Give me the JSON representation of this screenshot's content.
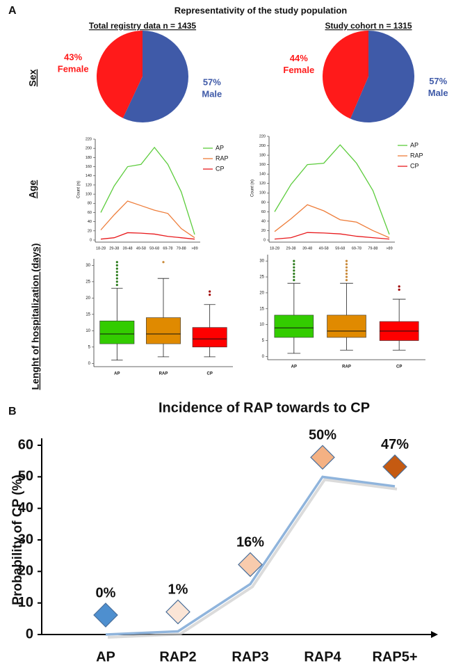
{
  "figure": {
    "panel_a": "A",
    "title": "Representativity of the study population",
    "row_labels": [
      "Sex",
      "Age",
      "Lenght of hospitalization (days)"
    ],
    "panel_b": "B"
  },
  "chart_data": [
    {
      "type": "pie",
      "subtitle": "Total registry data n = 1435",
      "categories": [
        "Female",
        "Male"
      ],
      "values": [
        43,
        57
      ],
      "value_labels": [
        "43%",
        "57%"
      ],
      "colors": [
        "#ff1a1a",
        "#3f5aa8"
      ]
    },
    {
      "type": "pie",
      "subtitle": "Study cohort n = 1315",
      "categories": [
        "Female",
        "Male"
      ],
      "values": [
        44,
        57
      ],
      "value_labels": [
        "44%",
        "57%"
      ],
      "colors": [
        "#ff1a1a",
        "#3f5aa8"
      ]
    },
    {
      "type": "line",
      "ylabel": "Count (n)",
      "categories": [
        "18-28",
        "29-38",
        "39-48",
        "49-58",
        "59-68",
        "69-78",
        "79-88",
        ">89"
      ],
      "ylim": [
        0,
        220
      ],
      "yticks": [
        0,
        20,
        40,
        60,
        80,
        100,
        120,
        140,
        160,
        180,
        200,
        220
      ],
      "series": [
        {
          "name": "AP",
          "color": "#5ccc3c",
          "values": [
            60,
            118,
            160,
            165,
            202,
            165,
            105,
            12
          ]
        },
        {
          "name": "RAP",
          "color": "#ee7d3a",
          "values": [
            22,
            55,
            85,
            75,
            65,
            58,
            25,
            5
          ]
        },
        {
          "name": "CP",
          "color": "#e8191c",
          "values": [
            2,
            5,
            16,
            15,
            13,
            8,
            5,
            2
          ]
        }
      ]
    },
    {
      "type": "line",
      "ylabel": "Count (n)",
      "categories": [
        "18-28",
        "29-38",
        "39-48",
        "49-58",
        "59-68",
        "69-78",
        "79-88",
        ">89"
      ],
      "ylim": [
        0,
        220
      ],
      "yticks": [
        0,
        20,
        40,
        60,
        80,
        100,
        120,
        140,
        160,
        180,
        200,
        220
      ],
      "series": [
        {
          "name": "AP",
          "color": "#5ccc3c",
          "values": [
            60,
            118,
            160,
            163,
            202,
            163,
            105,
            12
          ]
        },
        {
          "name": "RAP",
          "color": "#ee7d3a",
          "values": [
            18,
            45,
            75,
            62,
            43,
            38,
            20,
            5
          ]
        },
        {
          "name": "CP",
          "color": "#e8191c",
          "values": [
            2,
            5,
            16,
            15,
            13,
            8,
            5,
            2
          ]
        }
      ]
    },
    {
      "type": "box",
      "ylim": [
        -1,
        32
      ],
      "yticks": [
        0,
        5,
        10,
        15,
        20,
        25,
        30
      ],
      "boxes": [
        {
          "name": "AP",
          "color": "#33cc00",
          "whisker_low": 1,
          "q1": 6,
          "median": 9,
          "q3": 13,
          "whisker_high": 23,
          "outliers": [
            24,
            25,
            26,
            27,
            28,
            29,
            30,
            31
          ],
          "outlier_color": "#2e7d1e"
        },
        {
          "name": "RAP",
          "color": "#e08a00",
          "whisker_low": 2,
          "q1": 6,
          "median": 9,
          "q3": 14,
          "whisker_high": 26,
          "outliers": [
            31
          ],
          "outlier_color": "#c98a3a"
        },
        {
          "name": "CP",
          "color": "#ff0000",
          "whisker_low": 2,
          "q1": 5,
          "median": 7.5,
          "q3": 11,
          "whisker_high": 18,
          "outliers": [
            21,
            22
          ],
          "outlier_color": "#a00000"
        }
      ]
    },
    {
      "type": "box",
      "ylim": [
        -1,
        32
      ],
      "yticks": [
        0,
        5,
        10,
        15,
        20,
        25,
        30
      ],
      "boxes": [
        {
          "name": "AP",
          "color": "#33cc00",
          "whisker_low": 1,
          "q1": 6,
          "median": 9,
          "q3": 13,
          "whisker_high": 23,
          "outliers": [
            24,
            25,
            26,
            27,
            28,
            29,
            30
          ],
          "outlier_color": "#2e7d1e"
        },
        {
          "name": "RAP",
          "color": "#e08a00",
          "whisker_low": 2,
          "q1": 6,
          "median": 8,
          "q3": 13,
          "whisker_high": 23,
          "outliers": [
            24,
            25,
            26,
            27,
            28,
            29,
            30
          ],
          "outlier_color": "#c98a3a"
        },
        {
          "name": "CP",
          "color": "#ff0000",
          "whisker_low": 2,
          "q1": 5,
          "median": 8,
          "q3": 11,
          "whisker_high": 18,
          "outliers": [
            21,
            22
          ],
          "outlier_color": "#a00000"
        }
      ]
    },
    {
      "type": "diamond_line",
      "title": "Incidence of RAP towards to CP",
      "ylabel": "Probability of CP (%)",
      "categories": [
        "AP",
        "RAP2",
        "RAP3",
        "RAP4",
        "RAP5+"
      ],
      "values": [
        0,
        1,
        16,
        50,
        47
      ],
      "value_labels": [
        "0%",
        "1%",
        "16%",
        "50%",
        "47%"
      ],
      "color": "#8fb4dc",
      "marker_colors": [
        "#4e8fcf",
        "#fbe5d6",
        "#f8cbad",
        "#f4b183",
        "#c55a11"
      ],
      "ylim": [
        0,
        60
      ],
      "yticks": [
        0,
        10,
        20,
        30,
        40,
        50,
        60
      ]
    }
  ]
}
